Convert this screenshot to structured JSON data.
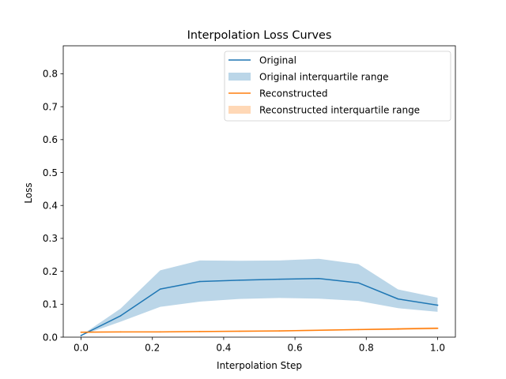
{
  "chart_data": {
    "type": "line",
    "title": "Interpolation Loss Curves",
    "xlabel": "Interpolation Step",
    "ylabel": "Loss",
    "xlim": [
      -0.05,
      1.05
    ],
    "ylim": [
      0.0,
      0.885
    ],
    "xticks": [
      0.0,
      0.2,
      0.4,
      0.6,
      0.8,
      1.0
    ],
    "xtick_labels": [
      "0.0",
      "0.2",
      "0.4",
      "0.6",
      "0.8",
      "1.0"
    ],
    "yticks": [
      0.0,
      0.1,
      0.2,
      0.3,
      0.4,
      0.5,
      0.6,
      0.7,
      0.8
    ],
    "ytick_labels": [
      "0.0",
      "0.1",
      "0.2",
      "0.3",
      "0.4",
      "0.5",
      "0.6",
      "0.7",
      "0.8"
    ],
    "grid": false,
    "legend_position": "top-right",
    "x": [
      0.0,
      0.111,
      0.222,
      0.333,
      0.444,
      0.556,
      0.667,
      0.778,
      0.889,
      1.0
    ],
    "series": [
      {
        "name": "Original",
        "color": "#1f77b4",
        "values": [
          0.005,
          0.065,
          0.146,
          0.169,
          0.173,
          0.176,
          0.178,
          0.165,
          0.116,
          0.097
        ],
        "band_name": "Original interquartile range",
        "band_color": "#1f77b4",
        "band_lower": [
          0.005,
          0.047,
          0.092,
          0.108,
          0.116,
          0.119,
          0.117,
          0.11,
          0.088,
          0.077
        ],
        "band_upper": [
          0.005,
          0.087,
          0.203,
          0.233,
          0.232,
          0.233,
          0.238,
          0.222,
          0.145,
          0.12
        ]
      },
      {
        "name": "Reconstructed",
        "color": "#ff7f0e",
        "values": [
          0.015,
          0.016,
          0.016,
          0.017,
          0.018,
          0.019,
          0.021,
          0.023,
          0.025,
          0.027
        ],
        "band_name": "Reconstructed interquartile range",
        "band_color": "#ff7f0e",
        "band_lower": [
          0.013,
          0.014,
          0.015,
          0.015,
          0.016,
          0.017,
          0.019,
          0.021,
          0.022,
          0.024
        ],
        "band_upper": [
          0.017,
          0.017,
          0.018,
          0.019,
          0.02,
          0.021,
          0.023,
          0.025,
          0.028,
          0.03
        ]
      }
    ]
  }
}
